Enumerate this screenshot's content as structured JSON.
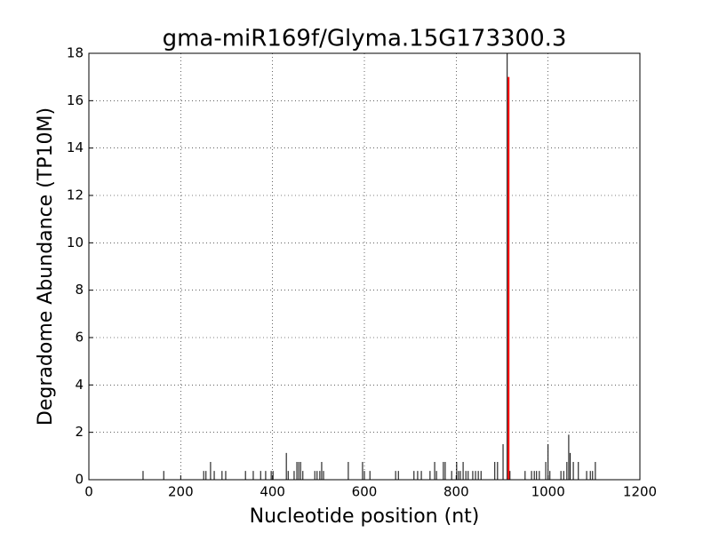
{
  "chart_data": {
    "type": "vlines",
    "title": "gma-miR169f/Glyma.15G173300.3",
    "x_label": "Nucleotide position (nt)",
    "y_label": "Degradome Abundance (TP10M)",
    "xlim": [
      0,
      1200
    ],
    "xticks": [
      0,
      200,
      400,
      600,
      800,
      1000,
      1200
    ],
    "ylim": [
      0,
      18
    ],
    "yticks": [
      0,
      2,
      4,
      6,
      8,
      10,
      12,
      14,
      16,
      18
    ],
    "grid": true,
    "series": [
      {
        "color": "#000000",
        "x": [
          118,
          163,
          250,
          255,
          265,
          273,
          290,
          298,
          341,
          358,
          374,
          385,
          397,
          401,
          430,
          434,
          447,
          453,
          457,
          461,
          466,
          492,
          497,
          503,
          507,
          511,
          565,
          596,
          600,
          612,
          668,
          674,
          708,
          716,
          724,
          743,
          753,
          757,
          772,
          776,
          790,
          801,
          805,
          809,
          815,
          821,
          826,
          836,
          842,
          848,
          854,
          884,
          890,
          902,
          911,
          917,
          950,
          964,
          970,
          975,
          981,
          995,
          1000,
          1004,
          1028,
          1034,
          1041,
          1045,
          1048,
          1055,
          1066,
          1084,
          1092,
          1097,
          1103
        ],
        "values": [
          0.37,
          0.37,
          0.37,
          0.37,
          0.75,
          0.37,
          0.37,
          0.37,
          0.37,
          0.37,
          0.37,
          0.37,
          0.37,
          0.37,
          1.13,
          0.37,
          0.37,
          0.75,
          0.75,
          0.75,
          0.37,
          0.37,
          0.37,
          0.37,
          0.75,
          0.37,
          0.75,
          0.75,
          0.37,
          0.37,
          0.37,
          0.37,
          0.37,
          0.37,
          0.37,
          0.37,
          0.75,
          0.37,
          0.75,
          0.75,
          0.37,
          0.75,
          0.37,
          0.37,
          0.75,
          0.37,
          0.37,
          0.37,
          0.37,
          0.37,
          0.37,
          0.75,
          0.75,
          1.5,
          18,
          0.37,
          0.37,
          0.37,
          0.37,
          0.37,
          0.37,
          0.75,
          1.5,
          0.37,
          0.37,
          0.37,
          0.75,
          1.9,
          1.13,
          0.75,
          0.75,
          0.37,
          0.37,
          0.37,
          0.75
        ],
        "width": 1
      },
      {
        "color": "#ff0000",
        "x": [
          914
        ],
        "values": [
          17
        ],
        "width": 2
      }
    ]
  }
}
